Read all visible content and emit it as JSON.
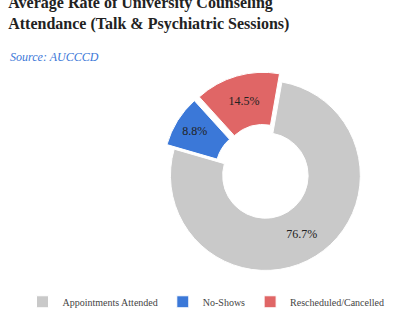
{
  "chart_data": {
    "type": "pie",
    "title": "Average Rate of University Counseling Attendance (Talk & Psychiatric Sessions)",
    "subtitle": "Source: AUCCCD",
    "categories": [
      "Appointments Attended",
      "No-Shows",
      "Rescheduled/Cancelled"
    ],
    "values": [
      76.7,
      8.8,
      14.5
    ],
    "value_labels": [
      "76.7%",
      "8.8%",
      "14.5%"
    ],
    "colors": [
      "#c9c9c9",
      "#3b78d8",
      "#e06666"
    ],
    "data_labels": true,
    "legend": "bottom"
  }
}
